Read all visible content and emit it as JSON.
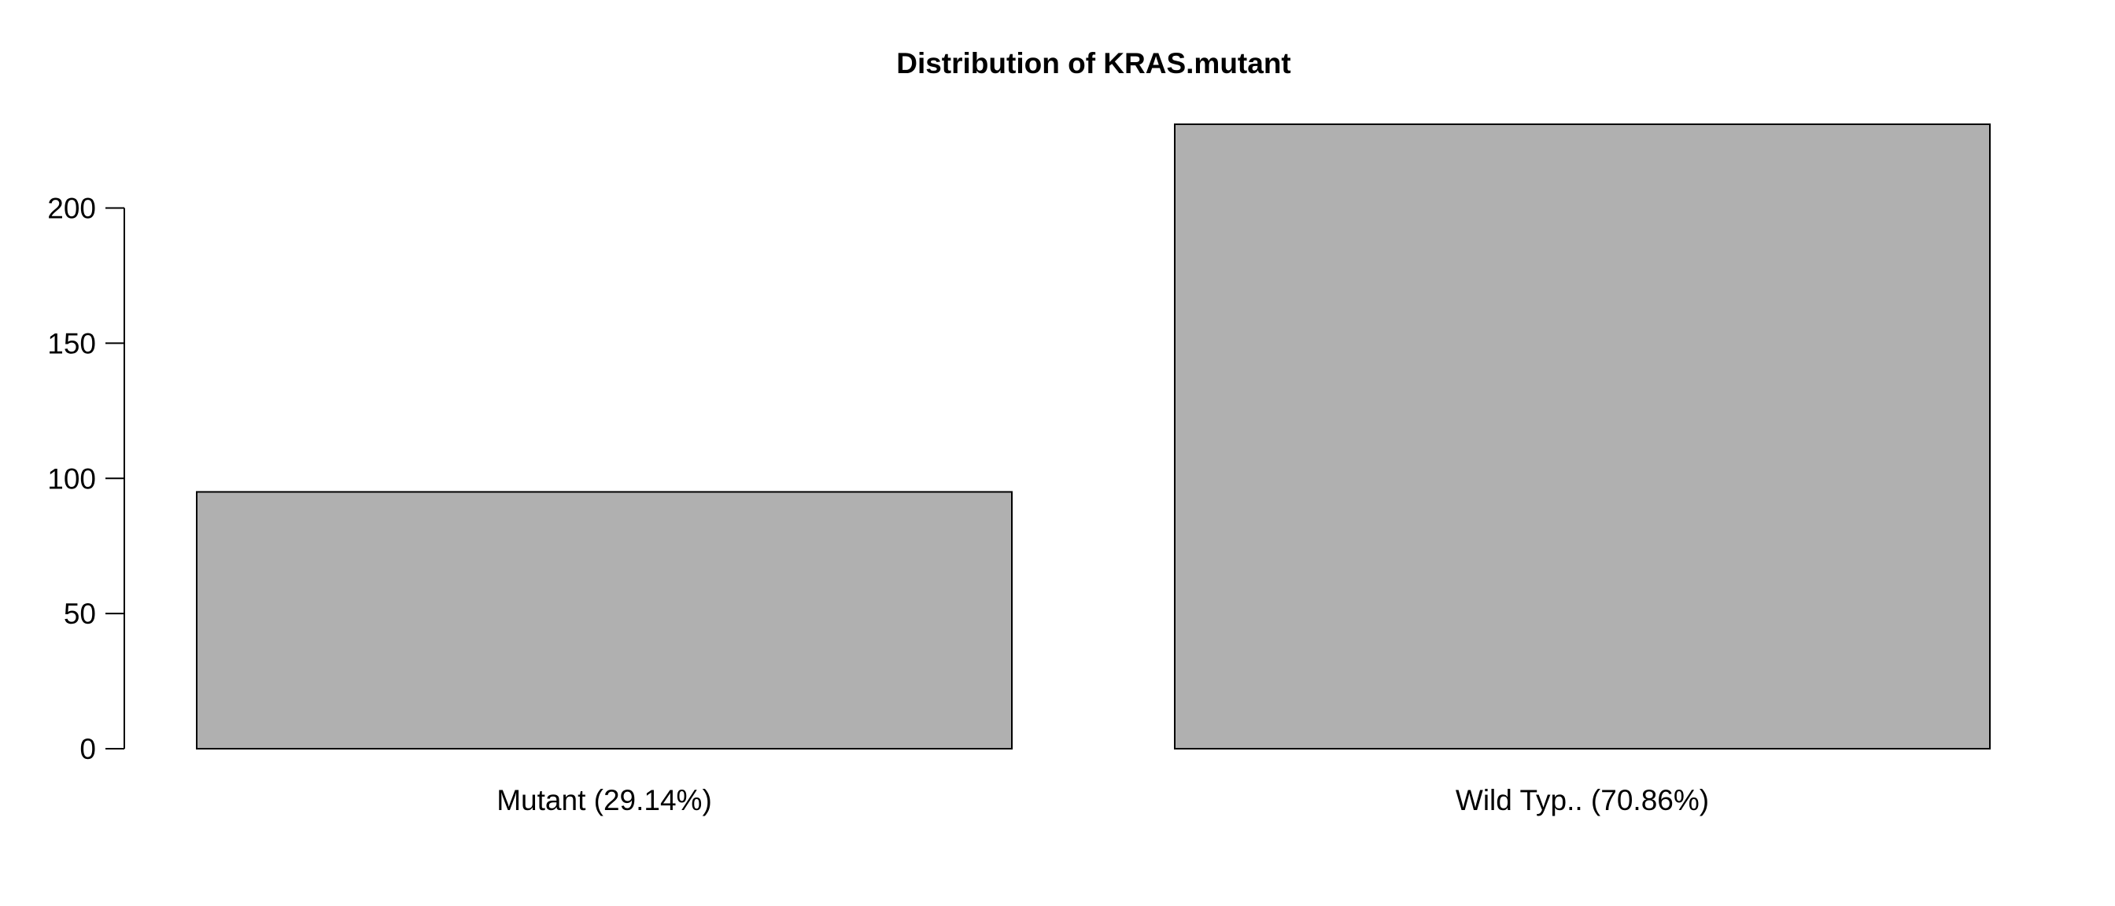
{
  "chart_data": {
    "type": "bar",
    "title": "Distribution of KRAS.mutant",
    "xlabel": "",
    "ylabel": "",
    "categories": [
      "Mutant (29.14%)",
      "Wild Typ.. (70.86%)"
    ],
    "values": [
      95,
      231
    ],
    "ylim": [
      0,
      231
    ],
    "yticks": [
      0,
      50,
      100,
      150,
      200
    ],
    "grid": false,
    "legend": "none",
    "bar_color": "#b0b0b0",
    "bar_edge_color": "#000000"
  }
}
